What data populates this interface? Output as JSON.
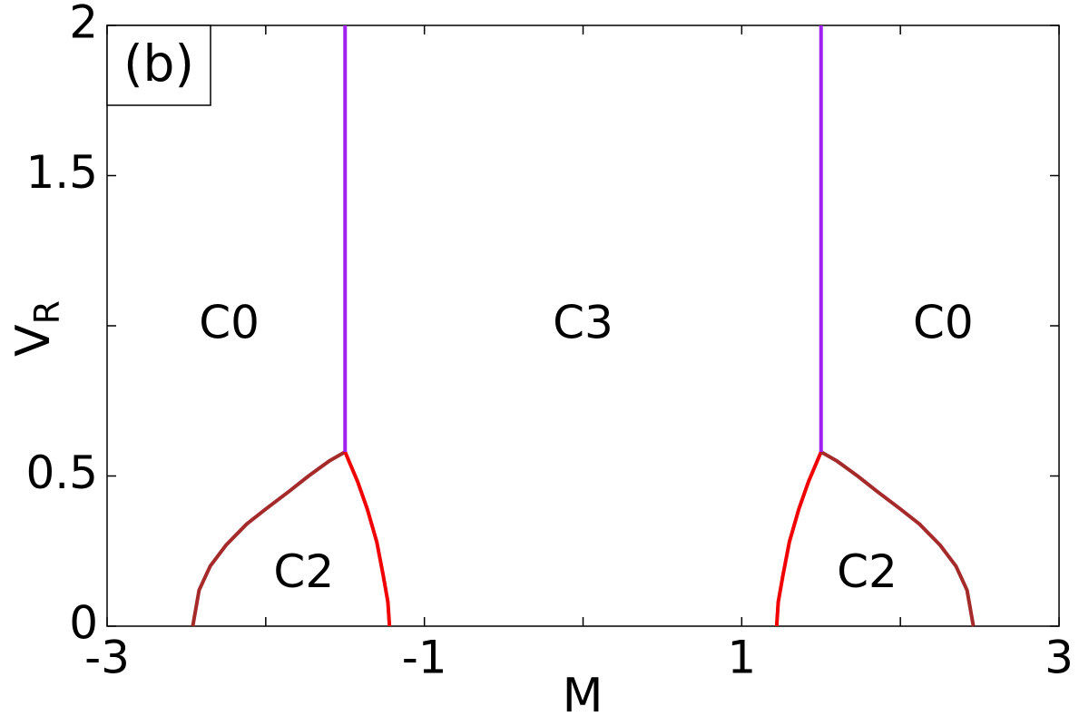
{
  "chart_data": {
    "type": "line",
    "panel_label": "(b)",
    "xlabel": "M",
    "ylabel": "V",
    "ylabel_subscript": "R",
    "xlim": [
      -3,
      3
    ],
    "ylim": [
      0,
      2
    ],
    "xticks": [
      -3,
      -1,
      1,
      3
    ],
    "xminor_ticks": [
      -2,
      0,
      2
    ],
    "yticks": [
      0,
      0.5,
      1.5,
      2
    ],
    "yminor_ticks": [
      1
    ],
    "grid": false,
    "series": [
      {
        "color": "#a52a2a",
        "x": [
          -2.46,
          -2.42,
          -2.35,
          -2.25,
          -2.12,
          -2.0,
          -1.85,
          -1.73,
          -1.6,
          -1.5
        ],
        "values": [
          0,
          0.12,
          0.2,
          0.27,
          0.34,
          0.39,
          0.45,
          0.5,
          0.55,
          0.58
        ]
      },
      {
        "color": "#f00000",
        "x": [
          -1.5,
          -1.42,
          -1.36,
          -1.3,
          -1.26,
          -1.23,
          -1.22
        ],
        "values": [
          0.58,
          0.48,
          0.39,
          0.28,
          0.17,
          0.08,
          0
        ]
      },
      {
        "color": "#a020f0",
        "x": [
          -1.5,
          -1.5
        ],
        "values": [
          0.58,
          2
        ]
      },
      {
        "color": "#f00000",
        "x": [
          1.22,
          1.23,
          1.26,
          1.3,
          1.36,
          1.42,
          1.5
        ],
        "values": [
          0,
          0.08,
          0.17,
          0.28,
          0.39,
          0.48,
          0.58
        ]
      },
      {
        "color": "#a52a2a",
        "x": [
          1.5,
          1.6,
          1.73,
          1.85,
          2.0,
          2.12,
          2.25,
          2.35,
          2.42,
          2.46
        ],
        "values": [
          0.58,
          0.55,
          0.5,
          0.45,
          0.39,
          0.34,
          0.27,
          0.2,
          0.12,
          0
        ]
      },
      {
        "color": "#a020f0",
        "x": [
          1.5,
          1.5
        ],
        "values": [
          0.58,
          2
        ]
      }
    ],
    "annotations": [
      {
        "text": "C0",
        "x": -2.23,
        "y": 1.0
      },
      {
        "text": "C3",
        "x": 0.0,
        "y": 1.0
      },
      {
        "text": "C0",
        "x": 2.27,
        "y": 1.0
      },
      {
        "text": "C2",
        "x": -1.76,
        "y": 0.17
      },
      {
        "text": "C2",
        "x": 1.79,
        "y": 0.17
      }
    ]
  }
}
